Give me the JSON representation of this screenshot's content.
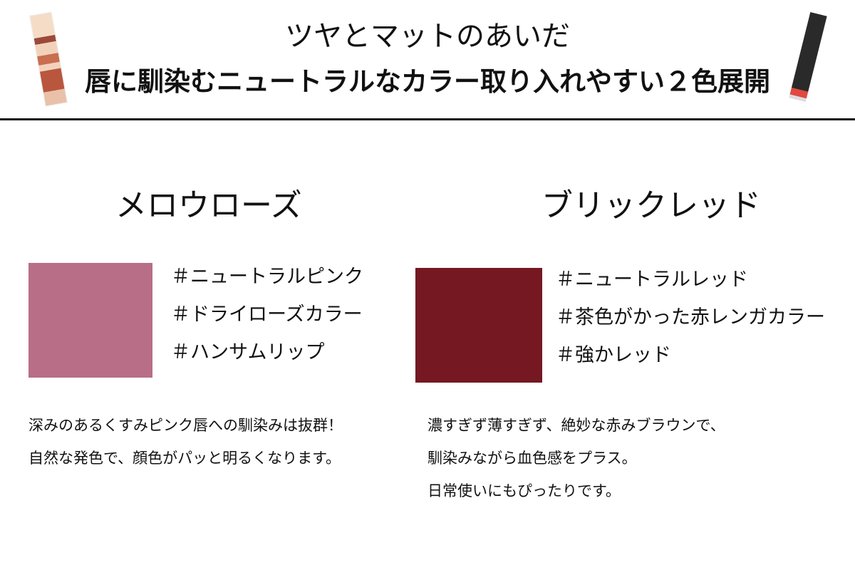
{
  "header": {
    "title": "ツヤとマットのあいだ",
    "subtitle": "唇に馴染むニュートラルなカラー取り入れやすい２色展開"
  },
  "colors": [
    {
      "name": "メロウローズ",
      "swatch": "#b86e86",
      "tags": [
        "＃ニュートラルピンク",
        "＃ドライローズカラー",
        "＃ハンサムリップ"
      ],
      "description": [
        "深みのあるくすみピンク唇への馴染みは抜群！",
        "自然な発色で、顔色がパッと明るくなります。"
      ]
    },
    {
      "name": "ブリックレッド",
      "swatch": "#751822",
      "tags": [
        "＃ニュートラルレッド",
        "＃茶色がかった赤レンガカラー",
        "＃強かレッド"
      ],
      "description": [
        "濃すぎず薄すぎず、絶妙な赤みブラウンで、",
        "馴染みながら血色感をプラス。",
        "日常使いにもぴったりです。"
      ]
    }
  ]
}
